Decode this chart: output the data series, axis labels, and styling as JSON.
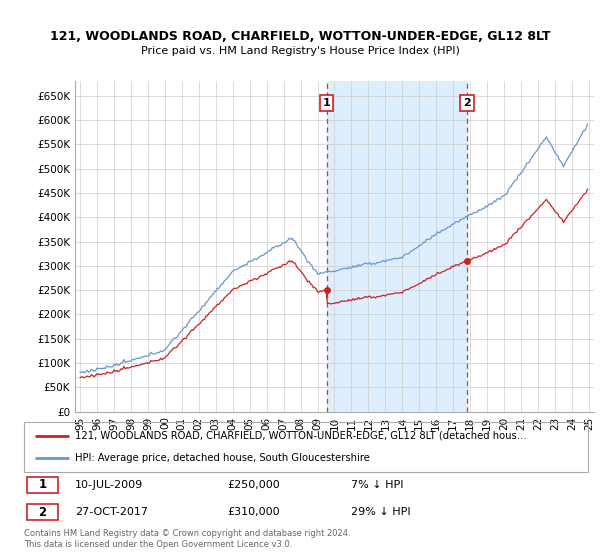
{
  "title1": "121, WOODLANDS ROAD, CHARFIELD, WOTTON-UNDER-EDGE, GL12 8LT",
  "title2": "Price paid vs. HM Land Registry's House Price Index (HPI)",
  "ylim": [
    0,
    680000
  ],
  "yticks": [
    0,
    50000,
    100000,
    150000,
    200000,
    250000,
    300000,
    350000,
    400000,
    450000,
    500000,
    550000,
    600000,
    650000
  ],
  "ytick_labels": [
    "£0",
    "£50K",
    "£100K",
    "£150K",
    "£200K",
    "£250K",
    "£300K",
    "£350K",
    "£400K",
    "£450K",
    "£500K",
    "£550K",
    "£600K",
    "£650K"
  ],
  "hpi_color": "#6699cc",
  "price_color": "#cc2222",
  "dashed_color": "#dd3333",
  "shaded_color": "#ddeeff",
  "purchase1_x": 2009.53,
  "purchase1_y": 250000,
  "purchase2_x": 2017.82,
  "purchase2_y": 310000,
  "legend_line1": "121, WOODLANDS ROAD, CHARFIELD, WOTTON-UNDER-EDGE, GL12 8LT (detached hous…",
  "legend_line2": "HPI: Average price, detached house, South Gloucestershire",
  "table_row1": [
    "1",
    "10-JUL-2009",
    "£250,000",
    "7% ↓ HPI"
  ],
  "table_row2": [
    "2",
    "27-OCT-2017",
    "£310,000",
    "29% ↓ HPI"
  ],
  "footer1": "Contains HM Land Registry data © Crown copyright and database right 2024.",
  "footer2": "This data is licensed under the Open Government Licence v3.0.",
  "xlim_start": 1994.7,
  "xlim_end": 2025.3
}
